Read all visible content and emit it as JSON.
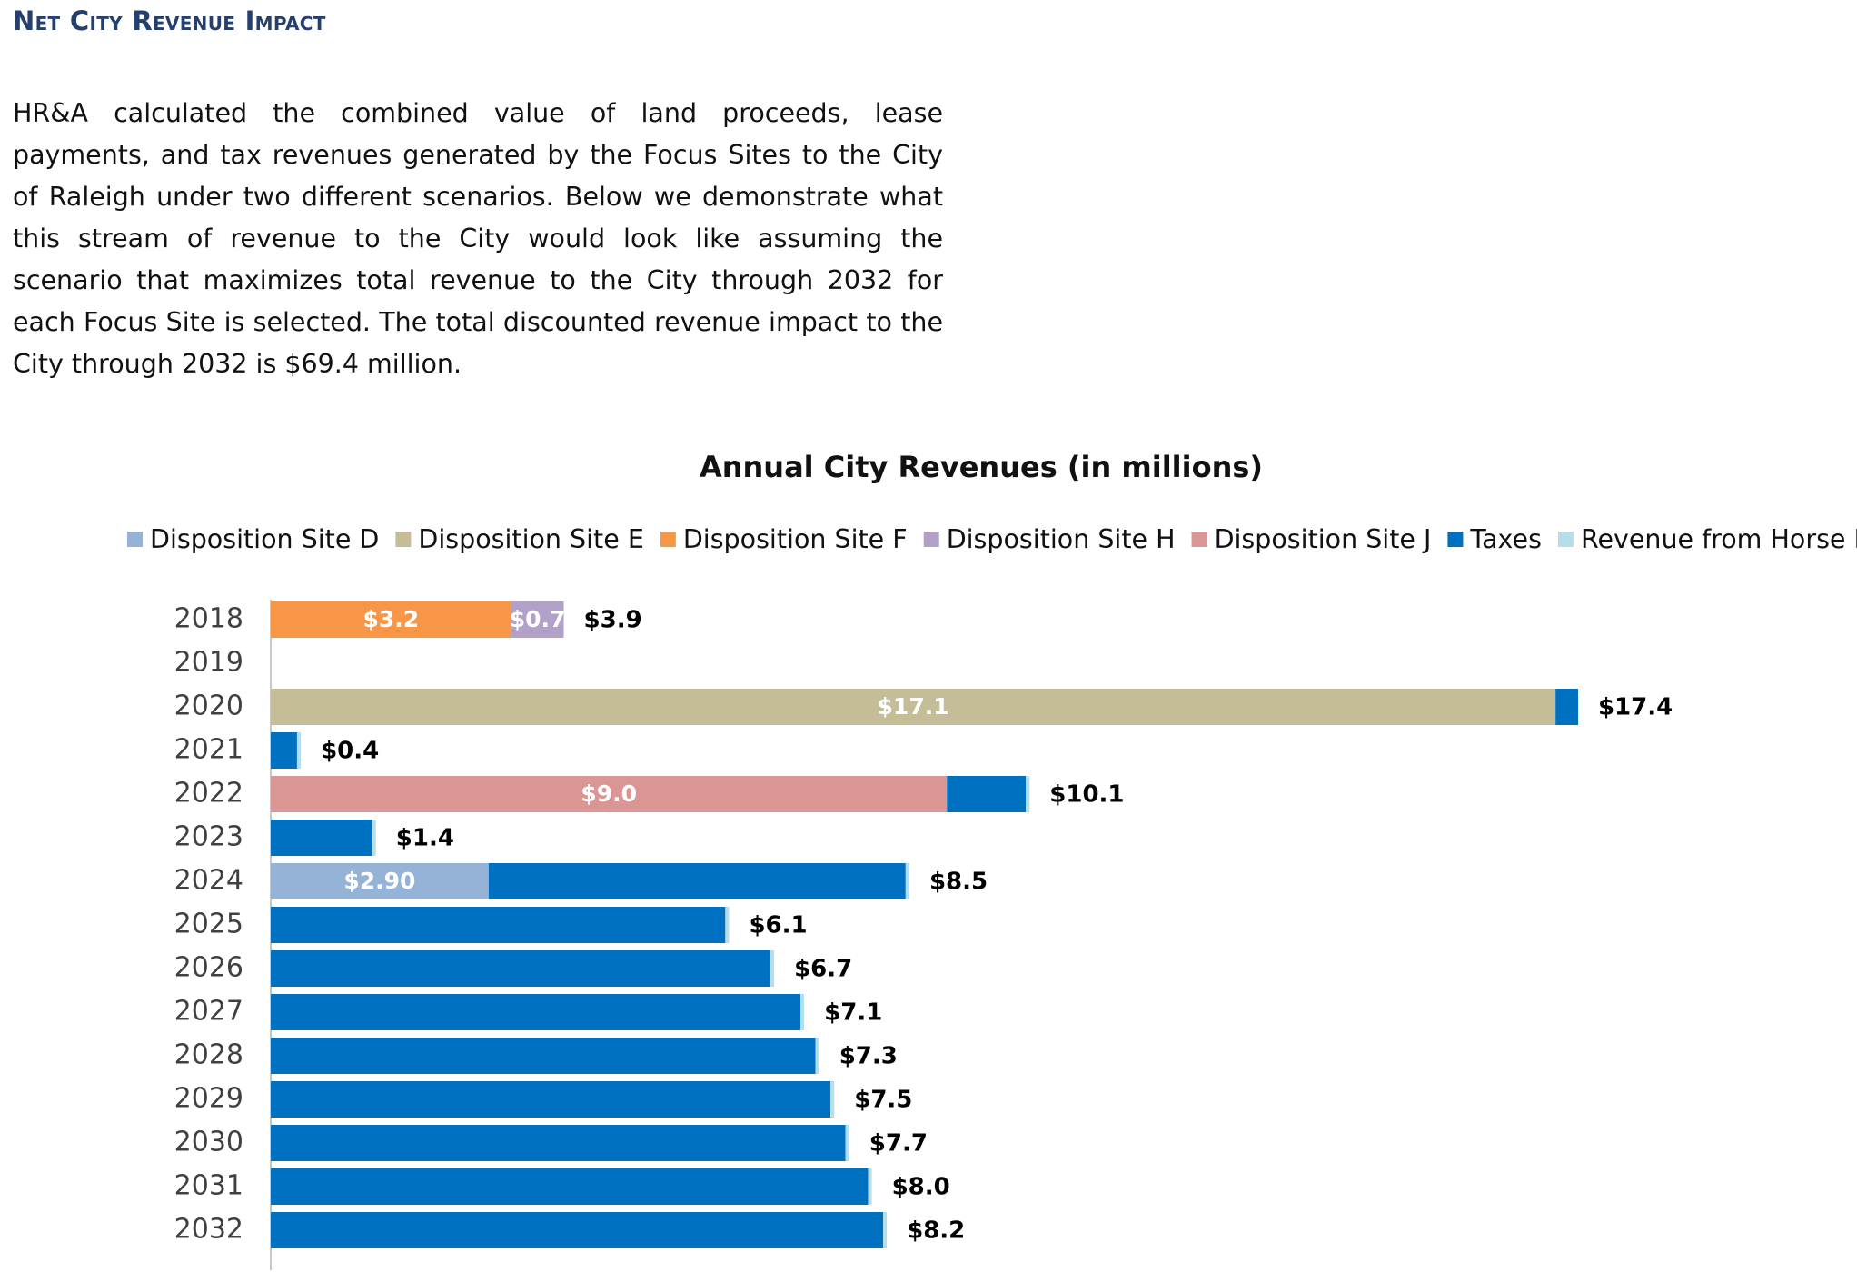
{
  "heading": "Net City Revenue Impact",
  "paragraph": "HR&A calculated the combined value of land proceeds, lease payments, and tax revenues generated by the Focus Sites to the City of Raleigh under two different scenarios. Below we demonstrate what this stream of revenue to the City would look like assuming the scenario that maximizes total revenue to the City through 2032 for each Focus Site is selected. The total discounted revenue impact to the City through 2032 is $69.4 million.",
  "chart_data": {
    "type": "bar",
    "orientation": "horizontal",
    "stacked": true,
    "title": "Annual City Revenues (in millions)",
    "categories": [
      "2018",
      "2019",
      "2020",
      "2021",
      "2022",
      "2023",
      "2024",
      "2025",
      "2026",
      "2027",
      "2028",
      "2029",
      "2030",
      "2031",
      "2032"
    ],
    "series": [
      {
        "name": "Disposition Site D",
        "color": "#95b3d7",
        "values": [
          0,
          0,
          0,
          0,
          0,
          0,
          2.9,
          0,
          0,
          0,
          0,
          0,
          0,
          0,
          0
        ],
        "labels": [
          "",
          "",
          "",
          "",
          "",
          "",
          "$2.90",
          "",
          "",
          "",
          "",
          "",
          "",
          "",
          ""
        ]
      },
      {
        "name": "Disposition Site E",
        "color": "#c4bd97",
        "values": [
          0,
          0,
          17.1,
          0,
          0,
          0,
          0,
          0,
          0,
          0,
          0,
          0,
          0,
          0,
          0
        ],
        "labels": [
          "",
          "",
          "$17.1",
          "",
          "",
          "",
          "",
          "",
          "",
          "",
          "",
          "",
          "",
          "",
          ""
        ]
      },
      {
        "name": "Disposition Site F",
        "color": "#f79646",
        "values": [
          3.2,
          0,
          0,
          0,
          0,
          0,
          0,
          0,
          0,
          0,
          0,
          0,
          0,
          0,
          0
        ],
        "labels": [
          "$3.2",
          "",
          "",
          "",
          "",
          "",
          "",
          "",
          "",
          "",
          "",
          "",
          "",
          "",
          ""
        ]
      },
      {
        "name": "Disposition Site H",
        "color": "#b1a0c7",
        "values": [
          0.7,
          0,
          0,
          0,
          0,
          0,
          0,
          0,
          0,
          0,
          0,
          0,
          0,
          0,
          0
        ],
        "labels": [
          "$0.7",
          "",
          "",
          "",
          "",
          "",
          "",
          "",
          "",
          "",
          "",
          "",
          "",
          "",
          ""
        ]
      },
      {
        "name": "Disposition Site J",
        "color": "#da9694",
        "values": [
          0,
          0,
          0,
          0,
          9.0,
          0,
          0,
          0,
          0,
          0,
          0,
          0,
          0,
          0,
          0
        ],
        "labels": [
          "",
          "",
          "",
          "",
          "$9.0",
          "",
          "",
          "",
          "",
          "",
          "",
          "",
          "",
          "",
          ""
        ]
      },
      {
        "name": "Taxes",
        "color": "#0070c0",
        "values": [
          0,
          0,
          0.3,
          0.35,
          1.05,
          1.35,
          5.55,
          6.05,
          6.65,
          7.05,
          7.25,
          7.45,
          7.65,
          7.95,
          8.15
        ]
      },
      {
        "name": "Revenue from Horse Barn",
        "color": "#b7dee8",
        "values": [
          0,
          0,
          0,
          0.05,
          0.05,
          0.05,
          0.05,
          0.05,
          0.05,
          0.05,
          0.05,
          0.05,
          0.05,
          0.05,
          0.05
        ]
      }
    ],
    "totals": [
      "$3.9",
      "",
      "$17.4",
      "$0.4",
      "$10.1",
      "$1.4",
      "$8.5",
      "$6.1",
      "$6.7",
      "$7.1",
      "$7.3",
      "$7.5",
      "$7.7",
      "$8.0",
      "$8.2"
    ],
    "legend": "top"
  }
}
